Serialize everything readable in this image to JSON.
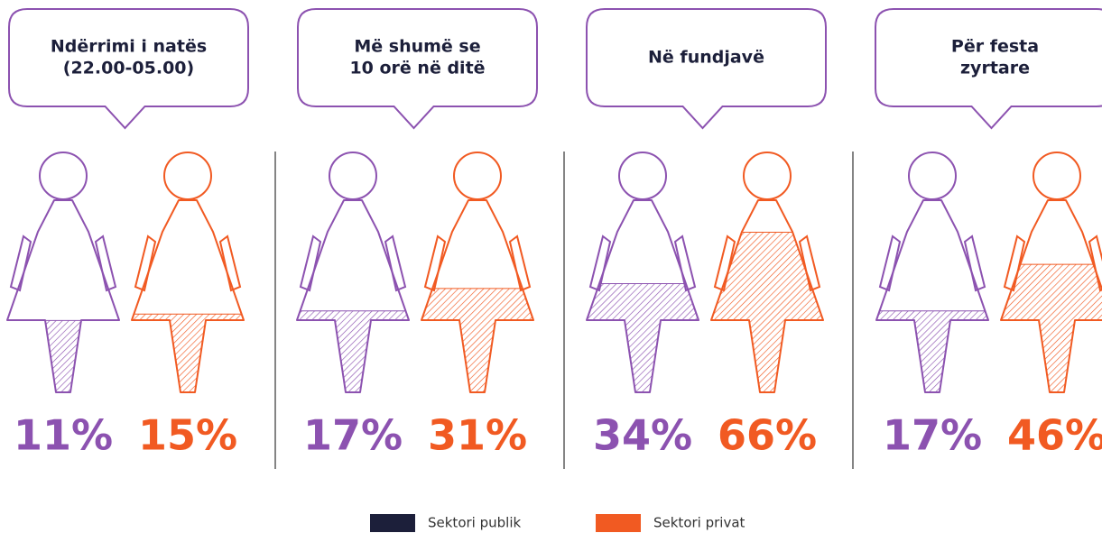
{
  "chart_data": {
    "type": "pictogram",
    "categories": [
      [
        "Ndërrimi i natës",
        "(22.00-05.00)"
      ],
      [
        "Më shumë se",
        "10 orë në ditë"
      ],
      [
        "Në fundjavë"
      ],
      [
        "Për festa",
        "zyrtare"
      ]
    ],
    "series": [
      {
        "name": "Sektori publik",
        "color": "#8c52b0",
        "legend_color": "#1c1f3a",
        "values": [
          11,
          17,
          34,
          17
        ],
        "value_labels": [
          "11%",
          "17%",
          "34%",
          "17%"
        ]
      },
      {
        "name": "Sektori privat",
        "color": "#f15a22",
        "legend_color": "#f15a22",
        "values": [
          15,
          31,
          66,
          46
        ],
        "value_labels": [
          "15%",
          "31%",
          "66%",
          "46%"
        ]
      }
    ],
    "callout_color": "#8c52b0"
  }
}
